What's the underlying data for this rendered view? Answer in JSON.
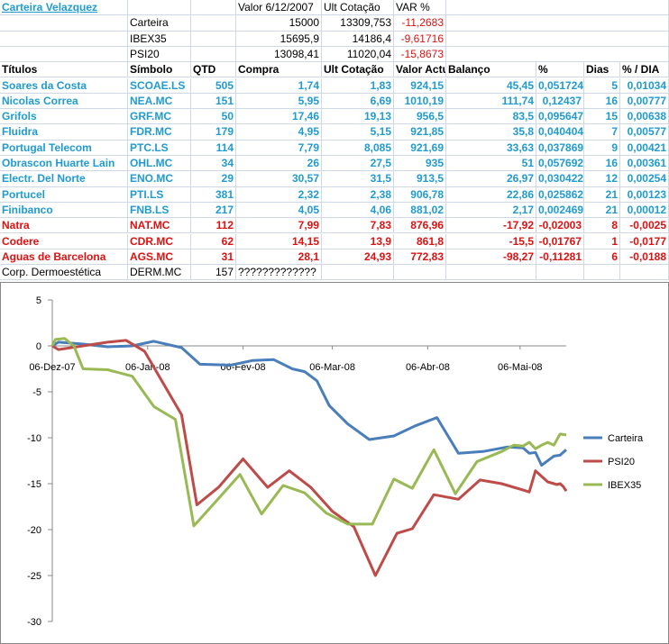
{
  "sheet": {
    "title": "Carteira Velazquez",
    "top_headers": {
      "valor": "Valor 6/12/2007",
      "ult": "Ult Cotação",
      "var": "VAR %"
    },
    "summary": [
      {
        "name": "Carteira",
        "valor": "15000",
        "ult": "13309,753",
        "var": "-11,2683"
      },
      {
        "name": "IBEX35",
        "valor": "15695,9",
        "ult": "14186,4",
        "var": "-9,61716"
      },
      {
        "name": "PSI20",
        "valor": "13098,41",
        "ult": "11020,04",
        "var": "-15,8673"
      }
    ],
    "columns": [
      "Títulos",
      "Símbolo",
      "QTD",
      "Compra",
      "Ult Cotação",
      "Valor Actual",
      "Balanço",
      "%",
      "Dias",
      "% / DIA"
    ],
    "rows": [
      {
        "titulo": "Soares da Costa",
        "simbolo": "SCOAE.LS",
        "qtd": "505",
        "compra": "1,74",
        "ult": "1,83",
        "valor": "924,15",
        "balanco": "45,45",
        "pct": "0,051724",
        "dias": "5",
        "pctdia": "0,01034",
        "style": "blue"
      },
      {
        "titulo": "Nicolas Correa",
        "simbolo": "NEA.MC",
        "qtd": "151",
        "compra": "5,95",
        "ult": "6,69",
        "valor": "1010,19",
        "balanco": "111,74",
        "pct": "0,12437",
        "dias": "16",
        "pctdia": "0,00777",
        "style": "blue"
      },
      {
        "titulo": "Grifols",
        "simbolo": "GRF.MC",
        "qtd": "50",
        "compra": "17,46",
        "ult": "19,13",
        "valor": "956,5",
        "balanco": "83,5",
        "pct": "0,095647",
        "dias": "15",
        "pctdia": "0,00638",
        "style": "blue"
      },
      {
        "titulo": "Fluidra",
        "simbolo": "FDR.MC",
        "qtd": "179",
        "compra": "4,95",
        "ult": "5,15",
        "valor": "921,85",
        "balanco": "35,8",
        "pct": "0,040404",
        "dias": "7",
        "pctdia": "0,00577",
        "style": "blue"
      },
      {
        "titulo": "Portugal Telecom",
        "simbolo": "PTC.LS",
        "qtd": "114",
        "compra": "7,79",
        "ult": "8,085",
        "valor": "921,69",
        "balanco": "33,63",
        "pct": "0,037869",
        "dias": "9",
        "pctdia": "0,00421",
        "style": "blue"
      },
      {
        "titulo": "Obrascon Huarte Lain",
        "simbolo": "OHL.MC",
        "qtd": "34",
        "compra": "26",
        "ult": "27,5",
        "valor": "935",
        "balanco": "51",
        "pct": "0,057692",
        "dias": "16",
        "pctdia": "0,00361",
        "style": "blue"
      },
      {
        "titulo": "Electr. Del Norte",
        "simbolo": "ENO.MC",
        "qtd": "29",
        "compra": "30,57",
        "ult": "31,5",
        "valor": "913,5",
        "balanco": "26,97",
        "pct": "0,030422",
        "dias": "12",
        "pctdia": "0,00254",
        "style": "blue"
      },
      {
        "titulo": "Portucel",
        "simbolo": "PTI.LS",
        "qtd": "381",
        "compra": "2,32",
        "ult": "2,38",
        "valor": "906,78",
        "balanco": "22,86",
        "pct": "0,025862",
        "dias": "21",
        "pctdia": "0,00123",
        "style": "blue"
      },
      {
        "titulo": "Finibanco",
        "simbolo": "FNB.LS",
        "qtd": "217",
        "compra": "4,05",
        "ult": "4,06",
        "valor": "881,02",
        "balanco": "2,17",
        "pct": "0,002469",
        "dias": "21",
        "pctdia": "0,00012",
        "style": "blue"
      },
      {
        "titulo": "Natra",
        "simbolo": "NAT.MC",
        "qtd": "112",
        "compra": "7,99",
        "ult": "7,83",
        "valor": "876,96",
        "balanco": "-17,92",
        "pct": "-0,02003",
        "dias": "8",
        "pctdia": "-0,0025",
        "style": "red"
      },
      {
        "titulo": "Codere",
        "simbolo": "CDR.MC",
        "qtd": "62",
        "compra": "14,15",
        "ult": "13,9",
        "valor": "861,8",
        "balanco": "-15,5",
        "pct": "-0,01767",
        "dias": "1",
        "pctdia": "-0,0177",
        "style": "red"
      },
      {
        "titulo": "Aguas de Barcelona",
        "simbolo": "AGS.MC",
        "qtd": "31",
        "compra": "28,1",
        "ult": "24,93",
        "valor": "772,83",
        "balanco": "-98,27",
        "pct": "-0,11281",
        "dias": "6",
        "pctdia": "-0,0188",
        "style": "red"
      },
      {
        "titulo": "Corp. Dermoestética",
        "simbolo": "DERM.MC",
        "qtd": "157",
        "compra": "?????????????",
        "ult": "",
        "valor": "",
        "balanco": "",
        "pct": "",
        "dias": "",
        "pctdia": "",
        "style": "plain"
      }
    ]
  },
  "colors": {
    "carteira": "#4a7ebb",
    "psi20": "#be4b48",
    "ibex35": "#98b954",
    "blue_text": "#1f9bd1",
    "red_text": "#e01010"
  },
  "chart_data": {
    "type": "line",
    "title": "",
    "xlabel": "",
    "ylabel": "",
    "ylim": [
      -30,
      5
    ],
    "yticks": [
      5,
      0,
      -5,
      -10,
      -15,
      -20,
      -25,
      -30
    ],
    "xticks": [
      "06-Dez-07",
      "06-Jan-08",
      "06-Fev-08",
      "06-Mar-08",
      "06-Abr-08",
      "06-Mai-08"
    ],
    "grid": false,
    "legend_position": "right",
    "series": [
      {
        "name": "Carteira",
        "color": "#4a7ebb",
        "points": [
          [
            0,
            0
          ],
          [
            2,
            0.4
          ],
          [
            10,
            0.2
          ],
          [
            18,
            -0.1
          ],
          [
            26,
            0
          ],
          [
            33,
            0.5
          ],
          [
            42,
            -0.2
          ],
          [
            48,
            -2
          ],
          [
            58,
            -2.1
          ],
          [
            65,
            -1.6
          ],
          [
            72,
            -1.5
          ],
          [
            78,
            -2.5
          ],
          [
            82,
            -2.8
          ],
          [
            86,
            -3.8
          ],
          [
            90,
            -6.5
          ],
          [
            96,
            -8.5
          ],
          [
            103,
            -10.2
          ],
          [
            111,
            -9.8
          ],
          [
            118,
            -8.7
          ],
          [
            125,
            -7.8
          ],
          [
            132,
            -11.7
          ],
          [
            140,
            -11.5
          ],
          [
            148,
            -11
          ],
          [
            153,
            -11.1
          ],
          [
            155,
            -11.7
          ],
          [
            157,
            -11.6
          ],
          [
            159,
            -13
          ],
          [
            163,
            -12
          ],
          [
            165,
            -11.9
          ],
          [
            167,
            -11.3
          ]
        ]
      },
      {
        "name": "PSI20",
        "color": "#be4b48",
        "points": [
          [
            0,
            0
          ],
          [
            2,
            -0.4
          ],
          [
            10,
            0
          ],
          [
            18,
            0.4
          ],
          [
            24,
            0.6
          ],
          [
            30,
            -0.6
          ],
          [
            42,
            -7.5
          ],
          [
            47,
            -17.3
          ],
          [
            54,
            -15.4
          ],
          [
            62,
            -12.3
          ],
          [
            70,
            -15.4
          ],
          [
            77,
            -13.6
          ],
          [
            84,
            -15.4
          ],
          [
            91,
            -18
          ],
          [
            98,
            -19.7
          ],
          [
            105,
            -25
          ],
          [
            112,
            -20.4
          ],
          [
            117,
            -19.9
          ],
          [
            124,
            -16.2
          ],
          [
            132,
            -16.7
          ],
          [
            139,
            -14.6
          ],
          [
            146,
            -15
          ],
          [
            153,
            -15.7
          ],
          [
            155,
            -15.9
          ],
          [
            157,
            -13.6
          ],
          [
            161,
            -14.8
          ],
          [
            164,
            -15.1
          ],
          [
            165,
            -15
          ],
          [
            166,
            -15.3
          ],
          [
            167,
            -15.8
          ]
        ]
      },
      {
        "name": "IBEX35",
        "color": "#98b954",
        "points": [
          [
            0,
            0
          ],
          [
            1,
            0.7
          ],
          [
            4,
            0.8
          ],
          [
            7,
            0
          ],
          [
            10,
            -2.5
          ],
          [
            18,
            -2.6
          ],
          [
            26,
            -3.3
          ],
          [
            33,
            -6.6
          ],
          [
            40,
            -8
          ],
          [
            46,
            -19.6
          ],
          [
            53,
            -17
          ],
          [
            61,
            -14
          ],
          [
            68,
            -18.3
          ],
          [
            75,
            -15.2
          ],
          [
            82,
            -16
          ],
          [
            89,
            -18.2
          ],
          [
            96,
            -19.4
          ],
          [
            104,
            -19.4
          ],
          [
            111,
            -14.5
          ],
          [
            117,
            -15.5
          ],
          [
            124,
            -11.3
          ],
          [
            131,
            -16.1
          ],
          [
            138,
            -12.6
          ],
          [
            146,
            -11.5
          ],
          [
            150,
            -10.8
          ],
          [
            153,
            -10.9
          ],
          [
            155,
            -10.5
          ],
          [
            157,
            -11.2
          ],
          [
            159,
            -10.8
          ],
          [
            161,
            -10.5
          ],
          [
            163,
            -10.8
          ],
          [
            165,
            -9.6
          ],
          [
            167,
            -9.7
          ]
        ]
      }
    ]
  }
}
